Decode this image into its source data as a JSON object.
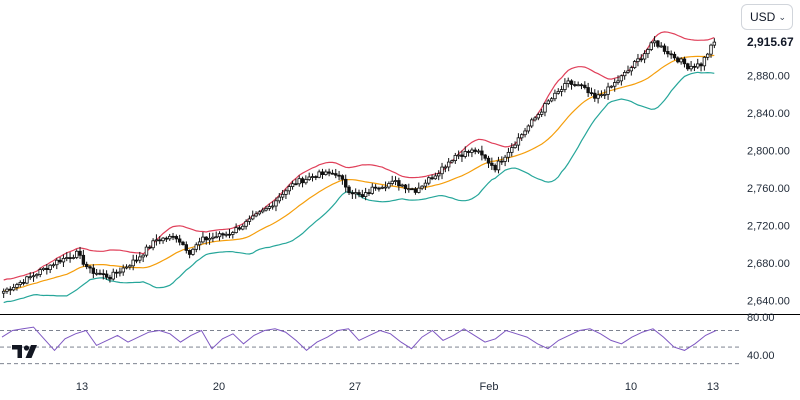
{
  "currency": {
    "label": "USD",
    "chevron": "chevron-down-icon"
  },
  "logo": {
    "icon": "tradingview-logo-icon",
    "color": "#131722"
  },
  "price_badge": "2,915.67",
  "colors": {
    "candle_body": "#111111",
    "upper_band": "#e0405a",
    "middle_band": "#f59e0b",
    "lower_band": "#26a69a",
    "rsi_line": "#7e57c2",
    "axis_text": "#1f2937",
    "divider": "#000000"
  },
  "chart_data": [
    {
      "type": "candlestick",
      "title": "",
      "xlabel": "",
      "ylabel": "",
      "x_ticks": [
        "13",
        "20",
        "27",
        "Feb",
        "10",
        "13"
      ],
      "y_ticks": [
        "2,640.00",
        "2,680.00",
        "2,720.00",
        "2,760.00",
        "2,800.00",
        "2,840.00",
        "2,880.00"
      ],
      "ylim": [
        2630,
        2935
      ],
      "last_price": 2915.67,
      "overlays": [
        "upper band",
        "middle band",
        "lower band"
      ],
      "close_path": [
        [
          0,
          2650
        ],
        [
          8,
          2665
        ],
        [
          16,
          2682
        ],
        [
          22,
          2690
        ],
        [
          26,
          2672
        ],
        [
          32,
          2665
        ],
        [
          40,
          2684
        ],
        [
          46,
          2705
        ],
        [
          52,
          2708
        ],
        [
          56,
          2692
        ],
        [
          60,
          2705
        ],
        [
          68,
          2712
        ],
        [
          74,
          2725
        ],
        [
          80,
          2740
        ],
        [
          84,
          2755
        ],
        [
          88,
          2766
        ],
        [
          94,
          2774
        ],
        [
          100,
          2776
        ],
        [
          104,
          2758
        ],
        [
          108,
          2750
        ],
        [
          112,
          2762
        ],
        [
          118,
          2766
        ],
        [
          124,
          2758
        ],
        [
          130,
          2775
        ],
        [
          136,
          2795
        ],
        [
          142,
          2800
        ],
        [
          148,
          2782
        ],
        [
          152,
          2800
        ],
        [
          158,
          2826
        ],
        [
          164,
          2852
        ],
        [
          170,
          2872
        ],
        [
          174,
          2868
        ],
        [
          178,
          2855
        ],
        [
          182,
          2865
        ],
        [
          188,
          2885
        ],
        [
          194,
          2908
        ],
        [
          196,
          2916
        ],
        [
          200,
          2905
        ],
        [
          206,
          2890
        ],
        [
          210,
          2892
        ],
        [
          214,
          2916
        ]
      ]
    },
    {
      "type": "line",
      "name": "RSI",
      "y_ticks": [
        "80.00",
        "40.00"
      ],
      "ylim": [
        20,
        85
      ],
      "reference_lines": [
        70,
        50,
        30
      ],
      "values": [
        62,
        70,
        72,
        74,
        60,
        46,
        60,
        66,
        70,
        52,
        58,
        64,
        56,
        62,
        68,
        70,
        66,
        56,
        64,
        70,
        48,
        60,
        66,
        54,
        64,
        70,
        72,
        68,
        58,
        46,
        56,
        62,
        70,
        72,
        58,
        64,
        70,
        66,
        56,
        48,
        62,
        70,
        58,
        64,
        72,
        64,
        56,
        60,
        70,
        66,
        62,
        54,
        48,
        58,
        64,
        70,
        72,
        66,
        58,
        54,
        62,
        68,
        72,
        62,
        50,
        46,
        54,
        64,
        70
      ]
    }
  ]
}
